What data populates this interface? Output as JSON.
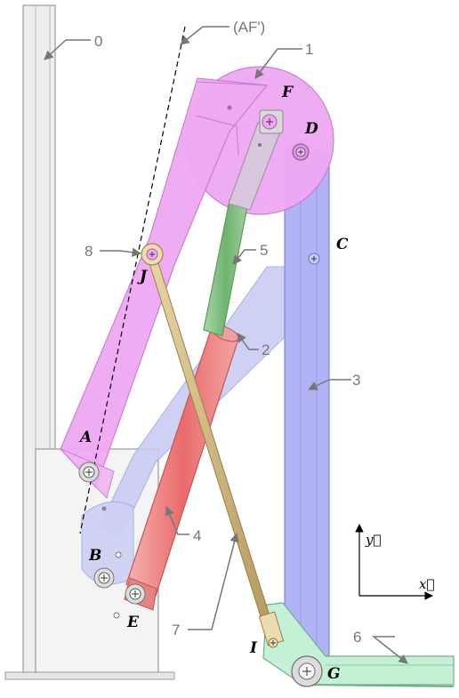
{
  "diagram": {
    "title": "",
    "part_labels": {
      "p0": "0",
      "p1": "1",
      "p2": "2",
      "p3": "3",
      "p4": "4",
      "p5": "5",
      "p6": "6",
      "p7": "7",
      "p8": "8"
    },
    "axis_label": "(AF')",
    "points": {
      "A": "A",
      "B": "B",
      "C": "C",
      "D": "D",
      "E": "E",
      "F": "F",
      "G": "G",
      "I": "I",
      "J": "J"
    },
    "frame": {
      "x": "x⃗",
      "y": "y⃗"
    },
    "colors": {
      "part0": "#e2e2e2",
      "part1": "#f0a8f2",
      "part2": "#c8cbf2",
      "part3": "#b1b3f4",
      "part4": "#ec8a8a",
      "part5": "#7fbf7f",
      "part6": "#c4f0d6",
      "part7": "#c8b07a",
      "pivot": "#ffffff"
    }
  }
}
